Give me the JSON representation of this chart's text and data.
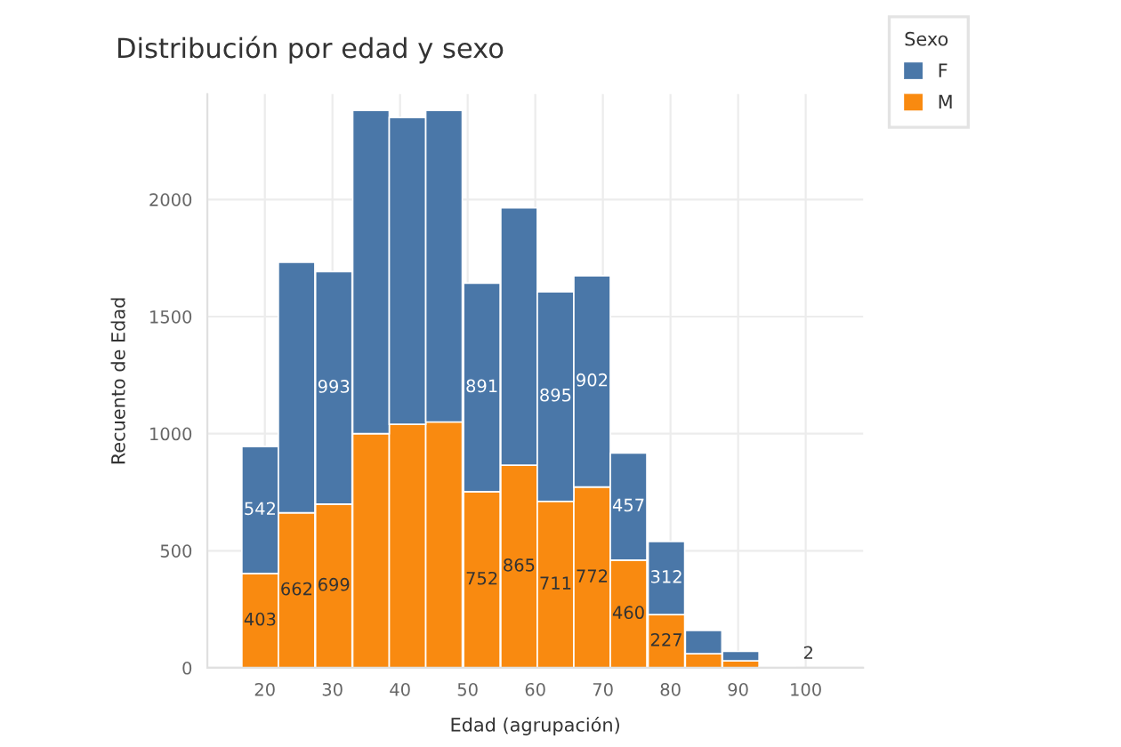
{
  "chart_data": {
    "type": "bar",
    "title": "Distribución por edad y sexo",
    "xlabel": "Edad (agrupación)",
    "ylabel": "Recuento de Edad",
    "legend_title": "Sexo",
    "legend": "top right",
    "grid": true,
    "stacked": true,
    "x": [
      19.3,
      24.7,
      30.2,
      35.7,
      41.1,
      46.5,
      52.1,
      57.6,
      63.0,
      68.4,
      73.8,
      79.4,
      84.9,
      90.4,
      95.8
    ],
    "series": [
      {
        "name": "M",
        "color": "#f98a10",
        "values": [
          403,
          662,
          699,
          1000,
          1040,
          1050,
          752,
          865,
          711,
          772,
          460,
          227,
          60,
          30,
          null
        ],
        "value_labels": [
          "403",
          "662",
          "699",
          null,
          null,
          null,
          "752",
          "865",
          "711",
          "772",
          "460",
          "227",
          null,
          null,
          null
        ]
      },
      {
        "name": "F",
        "color": "#4a77a8",
        "values": [
          542,
          1070,
          993,
          1380,
          1310,
          1330,
          891,
          1100,
          895,
          902,
          457,
          312,
          100,
          40,
          2
        ],
        "value_labels": [
          "542",
          null,
          "993",
          null,
          null,
          null,
          "891",
          null,
          "895",
          "902",
          "457",
          "312",
          null,
          null,
          "2"
        ]
      }
    ],
    "xlim": [
      11.5,
      108.5
    ],
    "ylim": [
      0,
      2450
    ],
    "xticks": [
      20,
      30,
      40,
      50,
      60,
      70,
      80,
      90,
      100
    ],
    "yticks": [
      0,
      500,
      1000,
      1500,
      2000
    ]
  }
}
